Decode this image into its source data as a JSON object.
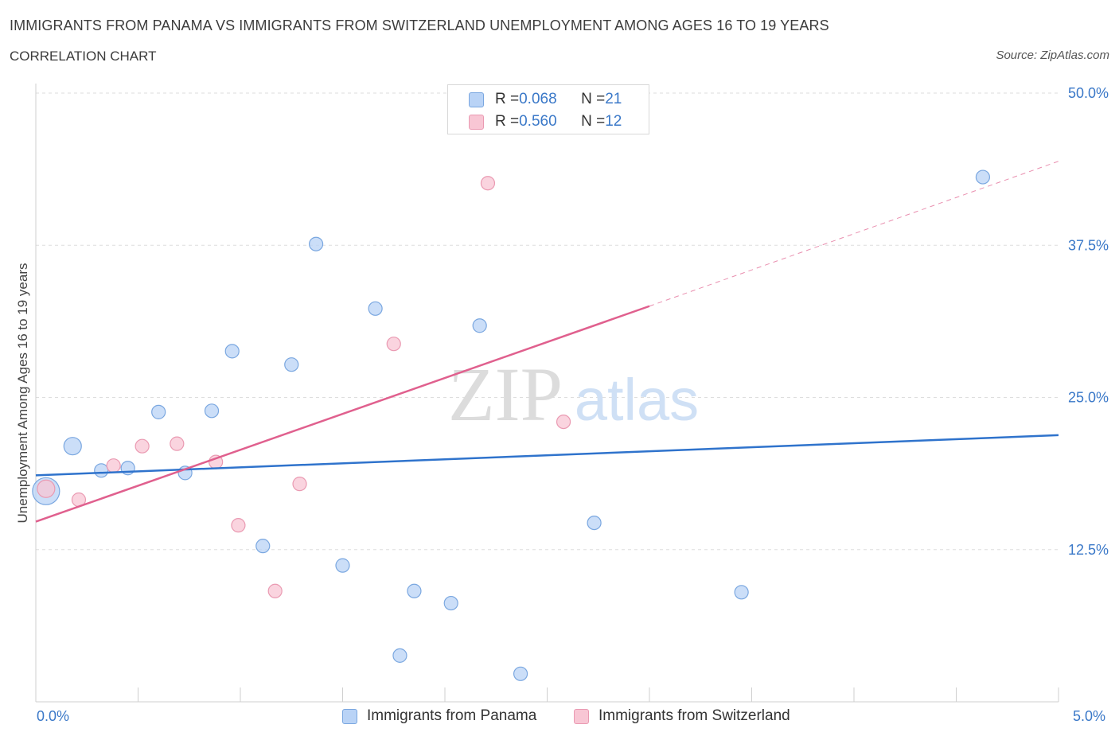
{
  "title": "IMMIGRANTS FROM PANAMA VS IMMIGRANTS FROM SWITZERLAND UNEMPLOYMENT AMONG AGES 16 TO 19 YEARS",
  "subtitle": "CORRELATION CHART",
  "source": "Source: ZipAtlas.com",
  "watermark": {
    "zip": "ZIP",
    "atlas": "atlas"
  },
  "colors": {
    "panama_fill": "#b9d3f6",
    "panama_stroke": "#7aa7e0",
    "panama_line": "#2f73cc",
    "swiss_fill": "#f8c6d4",
    "swiss_stroke": "#ea9ab2",
    "swiss_line": "#e0608e",
    "accent_text": "#3a78c8"
  },
  "legend": {
    "rows": [
      {
        "r_label": "R = ",
        "r_value": "0.068",
        "n_label": "N = ",
        "n_value": "21"
      },
      {
        "r_label": "R = ",
        "r_value": "0.560",
        "n_label": "N = ",
        "n_value": "12"
      }
    ]
  },
  "chart_data": {
    "type": "scatter",
    "title": "IMMIGRANTS FROM PANAMA VS IMMIGRANTS FROM SWITZERLAND UNEMPLOYMENT AMONG AGES 16 TO 19 YEARS",
    "xlabel": "",
    "ylabel": "Unemployment Among Ages 16 to 19 years",
    "xlim": [
      0,
      5
    ],
    "ylim": [
      0,
      50
    ],
    "x_tick_labels": [
      "0.0%",
      "5.0%"
    ],
    "y_ticks": [
      12.5,
      25,
      37.5,
      50
    ],
    "y_tick_labels": [
      "12.5%",
      "25.0%",
      "37.5%",
      "50.0%"
    ],
    "grid": true,
    "series": [
      {
        "name": "Immigrants from Panama",
        "points": [
          {
            "x": 0.05,
            "y": 17.3,
            "size": "large"
          },
          {
            "x": 0.18,
            "y": 21.0,
            "size": "medium"
          },
          {
            "x": 0.32,
            "y": 19.0
          },
          {
            "x": 0.45,
            "y": 19.2
          },
          {
            "x": 0.6,
            "y": 23.8
          },
          {
            "x": 0.73,
            "y": 18.8
          },
          {
            "x": 0.86,
            "y": 23.9
          },
          {
            "x": 0.96,
            "y": 28.8
          },
          {
            "x": 1.11,
            "y": 12.8
          },
          {
            "x": 1.25,
            "y": 27.7
          },
          {
            "x": 1.37,
            "y": 37.6
          },
          {
            "x": 1.5,
            "y": 11.2
          },
          {
            "x": 1.66,
            "y": 32.3
          },
          {
            "x": 1.78,
            "y": 3.8
          },
          {
            "x": 1.85,
            "y": 9.1
          },
          {
            "x": 2.03,
            "y": 8.1
          },
          {
            "x": 2.17,
            "y": 30.9
          },
          {
            "x": 2.37,
            "y": 2.3
          },
          {
            "x": 2.73,
            "y": 14.7
          },
          {
            "x": 3.45,
            "y": 9.0
          },
          {
            "x": 4.63,
            "y": 43.1
          }
        ],
        "trend": {
          "x0": 0.0,
          "y0": 18.6,
          "x1": 5.0,
          "y1": 21.9
        }
      },
      {
        "name": "Immigrants from Switzerland",
        "points": [
          {
            "x": 0.05,
            "y": 17.5,
            "size": "medium"
          },
          {
            "x": 0.21,
            "y": 16.6
          },
          {
            "x": 0.38,
            "y": 19.4
          },
          {
            "x": 0.52,
            "y": 21.0
          },
          {
            "x": 0.69,
            "y": 21.2
          },
          {
            "x": 0.88,
            "y": 19.7
          },
          {
            "x": 0.99,
            "y": 14.5
          },
          {
            "x": 1.17,
            "y": 9.1
          },
          {
            "x": 1.29,
            "y": 17.9
          },
          {
            "x": 1.75,
            "y": 29.4
          },
          {
            "x": 2.21,
            "y": 42.6
          },
          {
            "x": 2.58,
            "y": 23.0
          }
        ],
        "trend": {
          "x0": 0.0,
          "y0": 14.8,
          "x1": 3.0,
          "y1": 32.5
        },
        "trend_extension": {
          "x0": 3.0,
          "y0": 32.5,
          "x1": 5.0,
          "y1": 44.4
        }
      }
    ]
  }
}
